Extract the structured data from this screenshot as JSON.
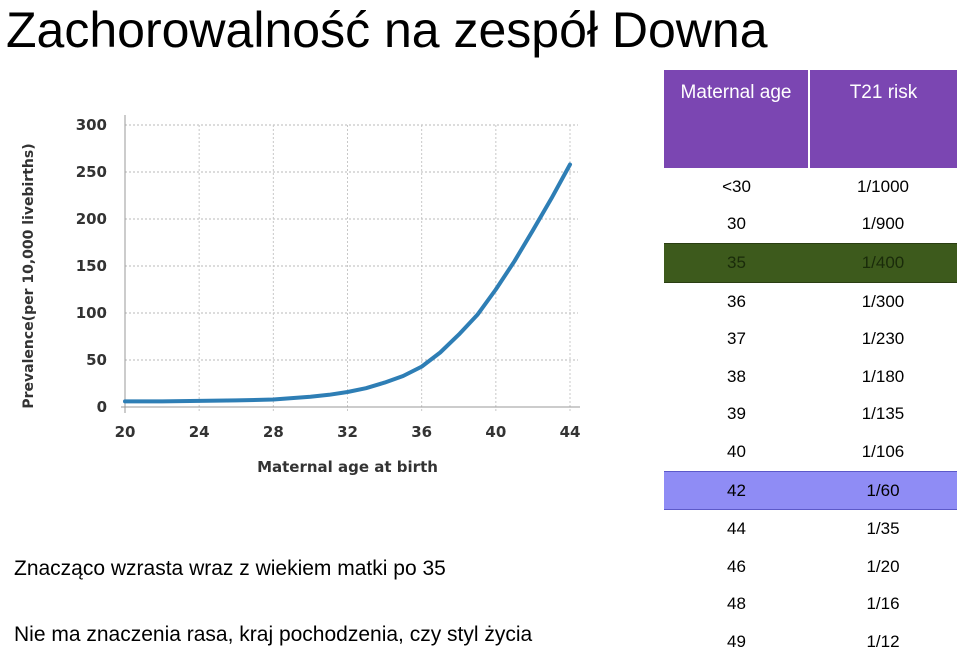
{
  "slide": {
    "title": "Zachorowalność na zespół Downa",
    "caption_1": "Znacząco wzrasta wraz z wiekiem matki po 35",
    "caption_2": "Nie ma znaczenia rasa, kraj pochodzenia, czy styl życia"
  },
  "table": {
    "headers": [
      "Maternal age",
      "T21 risk"
    ],
    "rows": [
      {
        "age": "<30",
        "risk": "1/1000",
        "highlight": ""
      },
      {
        "age": "30",
        "risk": "1/900",
        "highlight": ""
      },
      {
        "age": "35",
        "risk": "1/400",
        "highlight": "green"
      },
      {
        "age": "36",
        "risk": "1/300",
        "highlight": ""
      },
      {
        "age": "37",
        "risk": "1/230",
        "highlight": ""
      },
      {
        "age": "38",
        "risk": "1/180",
        "highlight": ""
      },
      {
        "age": "39",
        "risk": "1/135",
        "highlight": ""
      },
      {
        "age": "40",
        "risk": "1/106",
        "highlight": ""
      },
      {
        "age": "42",
        "risk": "1/60",
        "highlight": "blue"
      },
      {
        "age": "44",
        "risk": "1/35",
        "highlight": ""
      },
      {
        "age": "46",
        "risk": "1/20",
        "highlight": ""
      },
      {
        "age": "48",
        "risk": "1/16",
        "highlight": ""
      },
      {
        "age": "49",
        "risk": "1/12",
        "highlight": ""
      }
    ],
    "colors": {
      "header": "#7b46b2",
      "green": "#3d5a1c",
      "blue": "#8f8cf5"
    }
  },
  "chart_data": {
    "type": "line",
    "title": "",
    "xlabel": "Maternal age at birth",
    "ylabel": "Prevalence(per 10,000 livebirths)",
    "xlim": [
      20,
      44
    ],
    "ylim": [
      0,
      300
    ],
    "x_ticks": [
      20,
      24,
      28,
      32,
      36,
      40,
      44
    ],
    "y_ticks": [
      0,
      50,
      100,
      150,
      200,
      250,
      300
    ],
    "grid": true,
    "line_color": "#2e7eb5",
    "series": [
      {
        "name": "",
        "x": [
          20,
          22,
          24,
          26,
          28,
          30,
          31,
          32,
          33,
          34,
          35,
          36,
          37,
          38,
          39,
          40,
          41,
          42,
          43,
          44
        ],
        "y": [
          6,
          6,
          6.5,
          7,
          8,
          11,
          13,
          16,
          20,
          26,
          33,
          43,
          58,
          77,
          98,
          125,
          155,
          188,
          222,
          258
        ]
      }
    ]
  }
}
